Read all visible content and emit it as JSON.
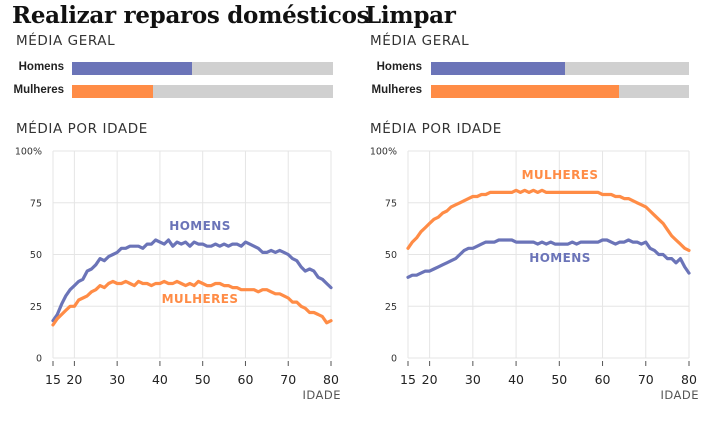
{
  "colors": {
    "homens": "#6b74b8",
    "mulheres": "#ff8c46",
    "track": "#d0d0d0",
    "grid": "#e5e5e5"
  },
  "labels": {
    "overall": "MÉDIA GERAL",
    "by_age": "MÉDIA POR IDADE",
    "x_axis": "IDADE",
    "homens_bar": "Homens",
    "mulheres_bar": "Mulheres",
    "homens_line": "HOMENS",
    "mulheres_line": "MULHERES"
  },
  "chart_data": [
    {
      "type": "line",
      "title": "Realizar reparos domésticos",
      "overall": {
        "Homens": 0.46,
        "Mulheres": 0.31
      },
      "xlabel": "IDADE",
      "xlim": [
        15,
        80
      ],
      "ylim": [
        0,
        100
      ],
      "x_ticks": [
        "15",
        "20",
        "30",
        "40",
        "50",
        "60",
        "70",
        "80"
      ],
      "y_ticks": [
        "0",
        "25",
        "50",
        "75",
        "100%"
      ],
      "x": [
        15,
        16,
        17,
        18,
        19,
        20,
        21,
        22,
        23,
        24,
        25,
        26,
        27,
        28,
        29,
        30,
        31,
        32,
        33,
        34,
        35,
        36,
        37,
        38,
        39,
        40,
        41,
        42,
        43,
        44,
        45,
        46,
        47,
        48,
        49,
        50,
        51,
        52,
        53,
        54,
        55,
        56,
        57,
        58,
        59,
        60,
        61,
        62,
        63,
        64,
        65,
        66,
        67,
        68,
        69,
        70,
        71,
        72,
        73,
        74,
        75,
        76,
        77,
        78,
        79,
        80
      ],
      "series": [
        {
          "name": "HOMENS",
          "values": [
            18,
            21,
            26,
            30,
            33,
            35,
            37,
            38,
            42,
            43,
            45,
            48,
            47,
            49,
            50,
            51,
            53,
            53,
            54,
            54,
            54,
            53,
            55,
            55,
            57,
            56,
            55,
            57,
            54,
            56,
            55,
            56,
            54,
            56,
            55,
            55,
            54,
            54,
            55,
            54,
            55,
            54,
            55,
            55,
            54,
            56,
            55,
            54,
            53,
            51,
            51,
            52,
            51,
            52,
            51,
            50,
            48,
            47,
            44,
            42,
            43,
            42,
            39,
            38,
            36,
            34
          ]
        },
        {
          "name": "MULHERES",
          "values": [
            16,
            19,
            21,
            23,
            25,
            25,
            28,
            29,
            30,
            32,
            33,
            35,
            34,
            36,
            37,
            36,
            36,
            37,
            36,
            35,
            37,
            36,
            36,
            35,
            36,
            36,
            37,
            36,
            36,
            37,
            36,
            35,
            36,
            35,
            37,
            36,
            35,
            35,
            36,
            36,
            35,
            35,
            34,
            34,
            33,
            33,
            33,
            33,
            32,
            33,
            33,
            32,
            31,
            31,
            30,
            29,
            27,
            27,
            25,
            24,
            22,
            22,
            21,
            20,
            17,
            18
          ]
        }
      ]
    },
    {
      "type": "line",
      "title": "Limpar",
      "overall": {
        "Homens": 0.52,
        "Mulheres": 0.73
      },
      "xlabel": "IDADE",
      "xlim": [
        15,
        80
      ],
      "ylim": [
        0,
        100
      ],
      "x_ticks": [
        "15",
        "20",
        "30",
        "40",
        "50",
        "60",
        "70",
        "80"
      ],
      "y_ticks": [
        "0",
        "25",
        "50",
        "75",
        "100%"
      ],
      "x": [
        15,
        16,
        17,
        18,
        19,
        20,
        21,
        22,
        23,
        24,
        25,
        26,
        27,
        28,
        29,
        30,
        31,
        32,
        33,
        34,
        35,
        36,
        37,
        38,
        39,
        40,
        41,
        42,
        43,
        44,
        45,
        46,
        47,
        48,
        49,
        50,
        51,
        52,
        53,
        54,
        55,
        56,
        57,
        58,
        59,
        60,
        61,
        62,
        63,
        64,
        65,
        66,
        67,
        68,
        69,
        70,
        71,
        72,
        73,
        74,
        75,
        76,
        77,
        78,
        79,
        80
      ],
      "series": [
        {
          "name": "MULHERES",
          "values": [
            53,
            56,
            58,
            61,
            63,
            65,
            67,
            68,
            70,
            71,
            73,
            74,
            75,
            76,
            77,
            78,
            78,
            79,
            79,
            80,
            80,
            80,
            80,
            80,
            80,
            81,
            80,
            81,
            80,
            81,
            80,
            81,
            80,
            80,
            80,
            80,
            80,
            80,
            80,
            80,
            80,
            80,
            80,
            80,
            80,
            79,
            79,
            79,
            78,
            78,
            77,
            77,
            76,
            75,
            74,
            73,
            71,
            69,
            67,
            65,
            62,
            59,
            57,
            55,
            53,
            52
          ]
        },
        {
          "name": "HOMENS",
          "values": [
            39,
            40,
            40,
            41,
            42,
            42,
            43,
            44,
            45,
            46,
            47,
            48,
            50,
            52,
            53,
            53,
            54,
            55,
            56,
            56,
            56,
            57,
            57,
            57,
            57,
            56,
            56,
            56,
            56,
            56,
            55,
            56,
            55,
            56,
            55,
            55,
            55,
            55,
            56,
            55,
            56,
            56,
            56,
            56,
            56,
            57,
            57,
            56,
            55,
            56,
            56,
            57,
            56,
            56,
            55,
            56,
            53,
            52,
            50,
            50,
            48,
            48,
            46,
            48,
            44,
            41
          ]
        }
      ]
    }
  ]
}
